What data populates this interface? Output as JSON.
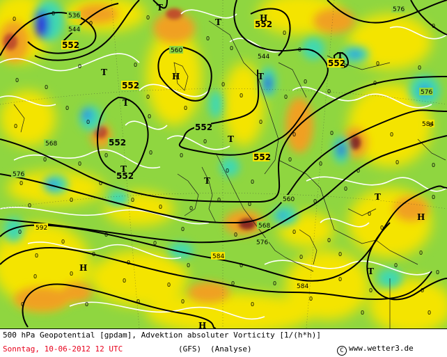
{
  "map": {
    "field_palette": {
      "yellow": "#f4e400",
      "orange": "#f0a020",
      "dark_orange": "#c0502a",
      "brown": "#8a2a20",
      "green": "#8fd640",
      "cyan": "#40d8b0",
      "blue": "#2a8ee8",
      "dark_blue": "#2a2adc",
      "white_contour": "#ffffff"
    },
    "contour_labels": [
      {
        "text": "536"
      },
      {
        "text": "544"
      },
      {
        "text": "552"
      },
      {
        "text": "552"
      },
      {
        "text": "552"
      },
      {
        "text": "552"
      },
      {
        "text": "552"
      },
      {
        "text": "552"
      },
      {
        "text": "552"
      },
      {
        "text": "552"
      },
      {
        "text": "560"
      },
      {
        "text": "544"
      },
      {
        "text": "576"
      },
      {
        "text": "576"
      },
      {
        "text": "584"
      },
      {
        "text": "568"
      },
      {
        "text": "576"
      },
      {
        "text": "592"
      },
      {
        "text": "560"
      },
      {
        "text": "568"
      },
      {
        "text": "576"
      },
      {
        "text": "584"
      },
      {
        "text": "584"
      }
    ],
    "pressure_labels": [
      {
        "text": "T"
      },
      {
        "text": "H"
      },
      {
        "text": "T"
      },
      {
        "text": "T"
      },
      {
        "text": "H"
      },
      {
        "text": "T"
      },
      {
        "text": "T"
      },
      {
        "text": "T"
      },
      {
        "text": "T"
      },
      {
        "text": "T"
      },
      {
        "text": "T"
      },
      {
        "text": "T"
      },
      {
        "text": "H"
      },
      {
        "text": "T"
      },
      {
        "text": "H"
      },
      {
        "text": "H"
      }
    ]
  },
  "footer": {
    "line1": "500 hPa Geopotential [gpdam], Advektion absoluter Vorticity [1/(h*h)]",
    "date": "Sonntag, 10-06-2012  12 UTC",
    "model": "(GFS)",
    "type": "(Analyse)",
    "copyright_symbol": "C",
    "credit": "www.wetter3.de"
  }
}
